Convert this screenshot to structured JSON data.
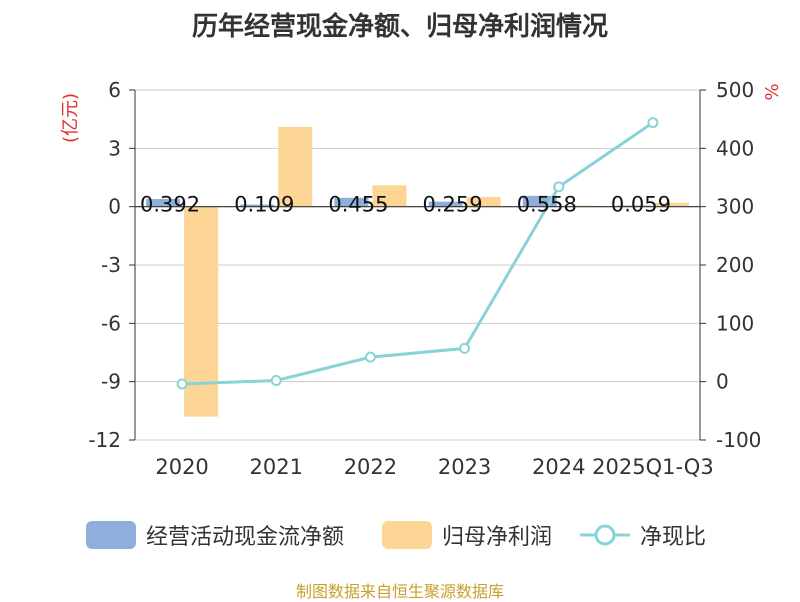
{
  "title": "历年经营现金净额、归母净利润情况",
  "source": "制图数据来自恒生聚源数据库",
  "chart_data": {
    "type": "bar",
    "categories": [
      "2020",
      "2021",
      "2022",
      "2023",
      "2024",
      "2025Q1-Q3"
    ],
    "y_left": {
      "label": "(亿元)",
      "ticks": [
        6,
        3,
        0,
        -3,
        -6,
        -9,
        -12
      ],
      "ylim": [
        -12,
        6
      ]
    },
    "y_right": {
      "label": "%",
      "ticks": [
        500,
        400,
        300,
        200,
        100,
        0,
        -100
      ],
      "ylim": [
        -100,
        500
      ]
    },
    "series": [
      {
        "name": "经营活动现金流净额",
        "type": "bar",
        "axis": "left",
        "values": [
          0.392,
          0.109,
          0.455,
          0.259,
          0.558,
          0.059
        ],
        "labels": [
          "0.392",
          "0.109",
          "0.455",
          "0.259",
          "0.558",
          "0.059"
        ]
      },
      {
        "name": "归母净利润",
        "type": "bar",
        "axis": "left",
        "values": [
          -10.8,
          4.1,
          1.1,
          0.5,
          0.05,
          0.2
        ]
      },
      {
        "name": "净现比",
        "type": "line",
        "axis": "right",
        "values": [
          -4,
          2,
          42,
          57,
          334,
          444
        ]
      }
    ],
    "colors": {
      "cash": "#8eafdc",
      "profit": "#fdd696",
      "ratio": "#88d3d8",
      "left_label": "#e03030",
      "right_label": "#e03030"
    }
  }
}
